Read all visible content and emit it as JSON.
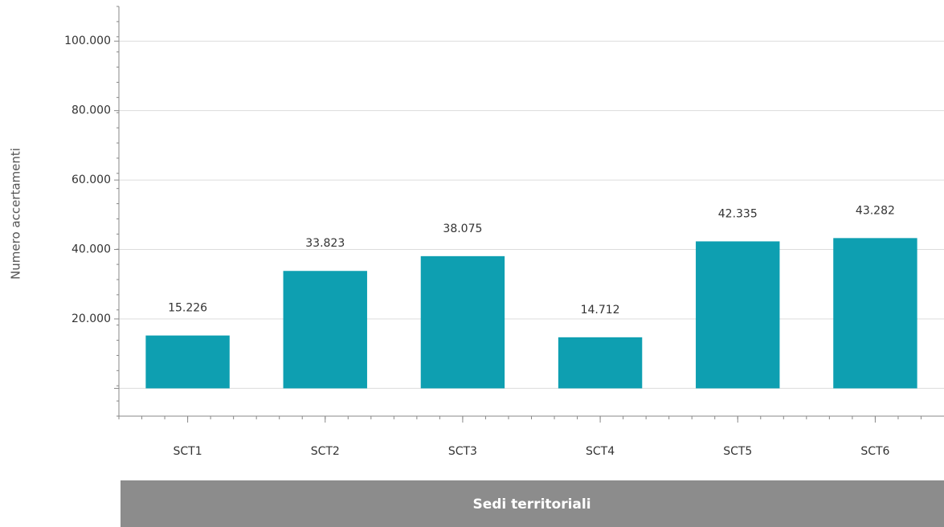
{
  "chart_data": {
    "type": "bar",
    "y_label": "Numero accertamenti",
    "x_label": "Sedi territoriali",
    "categories": [
      "SCT1",
      "SCT2",
      "SCT3",
      "SCT4",
      "SCT5",
      "SCT6"
    ],
    "values": [
      15226,
      33823,
      38075,
      14712,
      42335,
      43282
    ],
    "value_labels": [
      "15.226",
      "33.823",
      "38.075",
      "14.712",
      "42.335",
      "43.282"
    ],
    "color": "#0e9fb1",
    "ylim": [
      -8000,
      110000
    ],
    "yticks": [
      {
        "value": 20000,
        "label": "20.000"
      },
      {
        "value": 40000,
        "label": "40.000"
      },
      {
        "value": 60000,
        "label": "60.000"
      },
      {
        "value": 80000,
        "label": "80.000"
      },
      {
        "value": 100000,
        "label": "100.000"
      }
    ],
    "grid": true
  }
}
